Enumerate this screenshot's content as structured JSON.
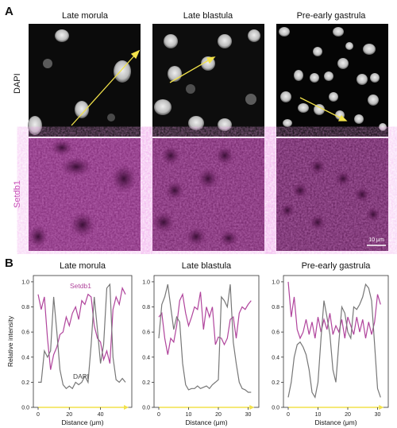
{
  "panel_a": {
    "letter": "A",
    "columns": [
      "Late morula",
      "Late blastula",
      "Pre-early gastrula"
    ],
    "rows": [
      "DAPI",
      "Setdb1"
    ],
    "scale_bar": "10 μm"
  },
  "panel_b": {
    "letter": "B",
    "ylabel": "Relative intensity",
    "xlabel": "Distance (μm)",
    "series_labels": {
      "setdb1": "Setdb1",
      "dapi": "DAPI"
    }
  },
  "colors": {
    "setdb1": "#b0449c",
    "dapi": "#777777",
    "arrow": "#f2e24a",
    "magenta_bg": "#6e1f63"
  },
  "chart_data": [
    {
      "type": "line",
      "title": "Late morula",
      "xlabel": "Distance (μm)",
      "ylabel": "Relative intensity",
      "xlim": [
        0,
        57
      ],
      "ylim": [
        0,
        1.05
      ],
      "xticks": [
        0,
        20,
        40
      ],
      "yticks": [
        0.0,
        0.2,
        0.4,
        0.6,
        0.8,
        1.0
      ],
      "x": [
        0,
        2,
        4,
        6,
        8,
        10,
        12,
        14,
        16,
        18,
        20,
        22,
        24,
        26,
        28,
        30,
        32,
        34,
        36,
        38,
        40,
        42,
        44,
        46,
        48,
        50,
        52,
        54,
        56
      ],
      "series": [
        {
          "name": "Setdb1",
          "values": [
            0.9,
            0.78,
            0.88,
            0.55,
            0.3,
            0.42,
            0.48,
            0.58,
            0.6,
            0.72,
            0.65,
            0.75,
            0.8,
            0.7,
            0.85,
            0.82,
            0.9,
            0.88,
            0.65,
            0.55,
            0.52,
            0.38,
            0.45,
            0.35,
            0.78,
            0.88,
            0.82,
            0.95,
            0.9
          ]
        },
        {
          "name": "DAPI",
          "values": [
            0.2,
            0.2,
            0.45,
            0.4,
            0.45,
            0.88,
            0.6,
            0.3,
            0.18,
            0.15,
            0.17,
            0.15,
            0.2,
            0.18,
            0.2,
            0.25,
            0.2,
            0.5,
            0.88,
            0.62,
            0.35,
            0.5,
            0.95,
            0.98,
            0.4,
            0.22,
            0.2,
            0.23,
            0.2
          ]
        }
      ]
    },
    {
      "type": "line",
      "title": "Late blastula",
      "xlabel": "Distance (μm)",
      "ylabel": "",
      "xlim": [
        0,
        32
      ],
      "ylim": [
        0,
        1.05
      ],
      "xticks": [
        0,
        10,
        20,
        30
      ],
      "x": [
        0,
        1,
        2,
        3,
        4,
        5,
        6,
        7,
        8,
        9,
        10,
        11,
        12,
        13,
        14,
        15,
        16,
        17,
        18,
        19,
        20,
        21,
        22,
        23,
        24,
        25,
        26,
        27,
        28,
        29,
        30,
        31
      ],
      "series": [
        {
          "name": "Setdb1",
          "values": [
            0.72,
            0.75,
            0.55,
            0.42,
            0.55,
            0.52,
            0.65,
            0.85,
            0.9,
            0.75,
            0.65,
            0.72,
            0.8,
            0.78,
            0.92,
            0.62,
            0.8,
            0.72,
            0.8,
            0.5,
            0.56,
            0.55,
            0.5,
            0.55,
            0.7,
            0.72,
            0.55,
            0.75,
            0.8,
            0.78,
            0.82,
            0.85
          ]
        },
        {
          "name": "DAPI",
          "values": [
            0.55,
            0.82,
            0.88,
            0.98,
            0.8,
            0.62,
            0.72,
            0.68,
            0.35,
            0.18,
            0.14,
            0.15,
            0.15,
            0.17,
            0.15,
            0.16,
            0.17,
            0.15,
            0.18,
            0.2,
            0.22,
            0.88,
            0.85,
            0.8,
            0.98,
            0.52,
            0.35,
            0.2,
            0.15,
            0.14,
            0.12,
            0.12
          ]
        }
      ]
    },
    {
      "type": "line",
      "title": "Pre-early gastrula",
      "xlabel": "Distance (μm)",
      "ylabel": "",
      "xlim": [
        0,
        32
      ],
      "ylim": [
        0,
        1.05
      ],
      "xticks": [
        0,
        10,
        20,
        30
      ],
      "x": [
        0,
        1,
        2,
        3,
        4,
        5,
        6,
        7,
        8,
        9,
        10,
        11,
        12,
        13,
        14,
        15,
        16,
        17,
        18,
        19,
        20,
        21,
        22,
        23,
        24,
        25,
        26,
        27,
        28,
        29,
        30,
        31
      ],
      "series": [
        {
          "name": "Setdb1",
          "values": [
            1.0,
            0.72,
            0.88,
            0.62,
            0.55,
            0.6,
            0.7,
            0.58,
            0.68,
            0.55,
            0.72,
            0.6,
            0.7,
            0.62,
            0.75,
            0.58,
            0.65,
            0.6,
            0.7,
            0.55,
            0.72,
            0.65,
            0.58,
            0.72,
            0.6,
            0.7,
            0.55,
            0.68,
            0.58,
            0.68,
            0.9,
            0.82
          ]
        },
        {
          "name": "DAPI",
          "values": [
            0.08,
            0.2,
            0.4,
            0.5,
            0.52,
            0.48,
            0.42,
            0.3,
            0.12,
            0.08,
            0.2,
            0.55,
            0.85,
            0.72,
            0.58,
            0.3,
            0.2,
            0.52,
            0.8,
            0.75,
            0.6,
            0.55,
            0.8,
            0.78,
            0.82,
            0.88,
            0.98,
            0.95,
            0.85,
            0.5,
            0.15,
            0.08
          ]
        }
      ]
    }
  ]
}
